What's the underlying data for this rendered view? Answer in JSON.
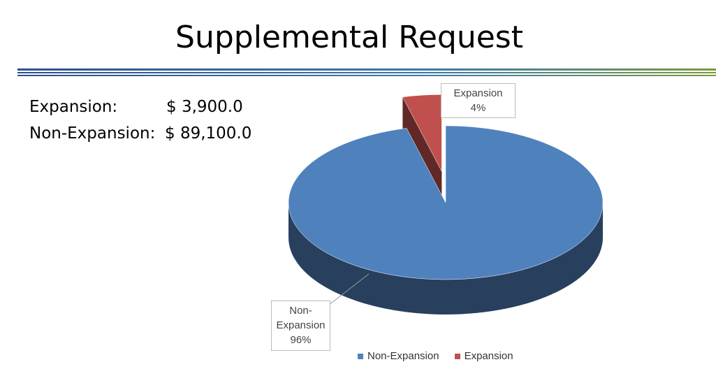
{
  "title": "Supplemental Request",
  "figures": [
    {
      "label": "Expansion:",
      "amount": "$ 3,900.0"
    },
    {
      "label": "Non-Expansion:",
      "amount": "$ 89,100.0"
    }
  ],
  "chart_data": {
    "type": "pie",
    "categories": [
      "Non-Expansion",
      "Expansion"
    ],
    "values": [
      96,
      4
    ],
    "value_labels": [
      "96%",
      "4%"
    ],
    "colors": [
      "#4f81bd",
      "#c0504d"
    ],
    "explode": [
      0,
      0.2
    ],
    "legend": "bottom"
  }
}
